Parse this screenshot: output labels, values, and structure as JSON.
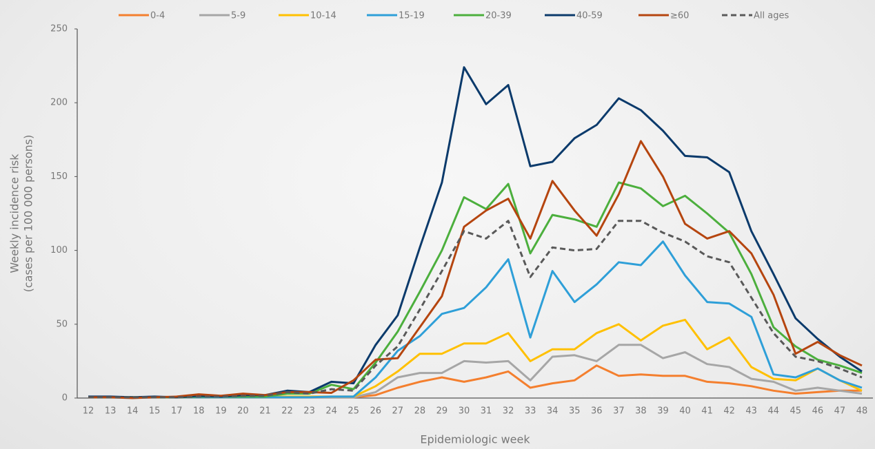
{
  "chart_data": {
    "type": "line",
    "y_label": [
      "Weekly incidence risk",
      "(cases per 100 000 persons)"
    ],
    "x_label": "Epidemiologic week",
    "categories": [
      "12",
      "13",
      "14",
      "15",
      "17",
      "18",
      "19",
      "20",
      "21",
      "22",
      "23",
      "24",
      "25",
      "26",
      "27",
      "28",
      "29",
      "30",
      "31",
      "32",
      "33",
      "34",
      "35",
      "36",
      "37",
      "38",
      "39",
      "40",
      "41",
      "42",
      "43",
      "44",
      "45",
      "46",
      "47",
      "48"
    ],
    "ylim": [
      0,
      250
    ],
    "yticks": [
      0,
      50,
      100,
      150,
      200,
      250
    ],
    "legend": "top",
    "series": [
      {
        "name": "0-4",
        "color": "#f47f2e",
        "dashed": false,
        "values": [
          0.5,
          0.5,
          0.5,
          0.5,
          0.5,
          0.5,
          0.5,
          0.5,
          0.5,
          0.5,
          0.5,
          0.5,
          0.5,
          2,
          7,
          11,
          14,
          11,
          14,
          18,
          7,
          10,
          12,
          22,
          15,
          16,
          15,
          15,
          11,
          10,
          8,
          5,
          3,
          4,
          5,
          5
        ]
      },
      {
        "name": "5-9",
        "color": "#a6a6a6",
        "dashed": false,
        "values": [
          0.5,
          0.5,
          0.5,
          0.5,
          0.5,
          0.5,
          0.5,
          0.5,
          0.5,
          0.5,
          0.5,
          0.5,
          0.5,
          4,
          14,
          17,
          17,
          25,
          24,
          25,
          12,
          28,
          29,
          25,
          36,
          36,
          27,
          31,
          23,
          21,
          13,
          11,
          5,
          7,
          5,
          3
        ]
      },
      {
        "name": "10-14",
        "color": "#ffc000",
        "dashed": false,
        "values": [
          0.5,
          0.5,
          0.5,
          0.5,
          0.5,
          0.5,
          0.5,
          0.5,
          0.5,
          1,
          1,
          1,
          1,
          8,
          18,
          30,
          30,
          37,
          37,
          44,
          25,
          33,
          33,
          44,
          50,
          39,
          49,
          53,
          33,
          41,
          21,
          13,
          12,
          20,
          12,
          5
        ]
      },
      {
        "name": "15-19",
        "color": "#2e9fd8",
        "dashed": false,
        "values": [
          0.5,
          0.5,
          0.5,
          0.5,
          0.5,
          0.5,
          0.5,
          0.5,
          0.5,
          0.5,
          0.5,
          1,
          1,
          14,
          32,
          42,
          57,
          61,
          75,
          94,
          41,
          86,
          65,
          77,
          92,
          90,
          106,
          83,
          65,
          64,
          55,
          16,
          14,
          20,
          12,
          7
        ]
      },
      {
        "name": "20-39",
        "color": "#4caf3d",
        "dashed": false,
        "values": [
          0.5,
          0.5,
          0.5,
          0.5,
          0.5,
          1,
          1,
          1,
          1,
          3,
          3,
          9,
          6,
          24,
          45,
          72,
          100,
          136,
          128,
          145,
          98,
          124,
          121,
          116,
          146,
          142,
          130,
          137,
          125,
          112,
          84,
          48,
          35,
          26,
          22,
          17
        ]
      },
      {
        "name": "40-59",
        "color": "#0b3a6b",
        "dashed": false,
        "values": [
          1,
          1,
          0.5,
          1,
          0.5,
          1.5,
          1,
          2,
          2,
          5,
          4,
          11,
          10,
          36,
          56,
          102,
          146,
          224,
          199,
          212,
          157,
          160,
          176,
          185,
          203,
          195,
          181,
          164,
          163,
          153,
          113,
          84,
          54,
          40,
          28,
          18
        ]
      },
      {
        "name": "≥60",
        "color": "#b5450f",
        "dashed": false,
        "values": [
          0.5,
          0.5,
          0,
          0.5,
          1,
          2.5,
          1.5,
          3,
          2,
          4,
          4,
          3.5,
          12,
          26,
          27,
          48,
          69,
          116,
          127,
          135,
          108,
          147,
          127,
          110,
          138,
          174,
          150,
          118,
          108,
          113,
          98,
          70,
          30,
          38,
          29,
          22
        ]
      },
      {
        "name": "All ages",
        "color": "#595959",
        "dashed": true,
        "values": [
          0.5,
          0.5,
          0.5,
          0.5,
          0.5,
          1,
          1,
          1.5,
          1.5,
          4,
          3,
          6,
          5,
          22,
          35,
          60,
          86,
          113,
          108,
          120,
          82,
          102,
          100,
          101,
          120,
          120,
          112,
          106,
          96,
          92,
          68,
          44,
          28,
          25,
          20,
          14
        ]
      }
    ]
  }
}
